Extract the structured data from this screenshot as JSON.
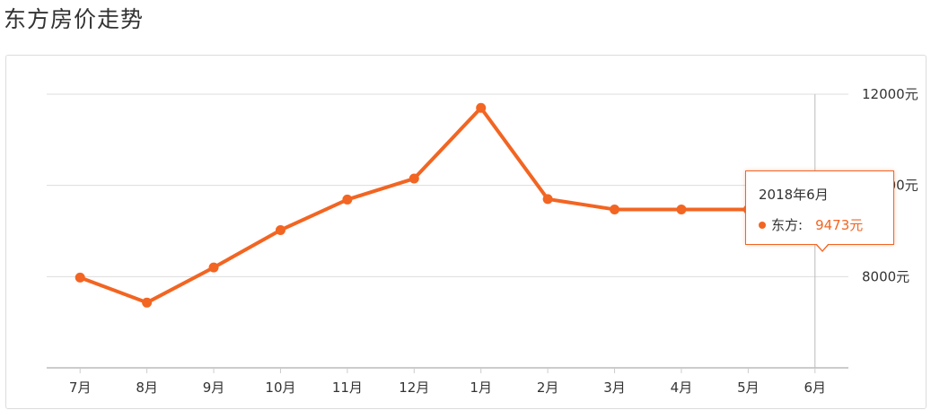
{
  "page": {
    "title": "东方房价走势"
  },
  "colors": {
    "line": "#f26522",
    "grid": "#dddddd",
    "axis": "#cccccc",
    "text": "#333333"
  },
  "chart_data": {
    "type": "line",
    "categories": [
      "7月",
      "8月",
      "9月",
      "10月",
      "11月",
      "12月",
      "1月",
      "2月",
      "3月",
      "4月",
      "5月",
      "6月"
    ],
    "series": [
      {
        "name": "东方",
        "values": [
          7980,
          7430,
          8200,
          9020,
          9690,
          10150,
          11700,
          9700,
          9473,
          9473,
          9473,
          9473
        ]
      }
    ],
    "yticks": [
      8000,
      10000,
      12000
    ],
    "ytick_labels": [
      "8000元",
      "10000元",
      "12000元"
    ],
    "ylim": [
      6000,
      12000
    ],
    "grid": true,
    "y_axis_position": "right",
    "highlight_index": 11
  },
  "tooltip": {
    "title": "2018年6月",
    "series_label": "东方:",
    "value": "9473元"
  }
}
